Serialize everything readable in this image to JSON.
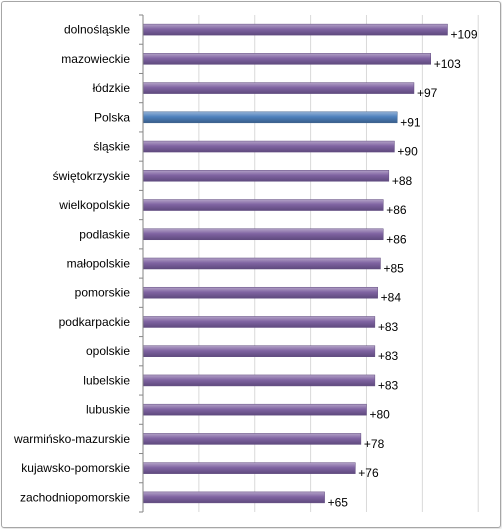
{
  "chart_data": {
    "type": "bar",
    "orientation": "horizontal",
    "categories": [
      "dolnośląskle",
      "mazowieckie",
      "łódzkie",
      "Polska",
      "śląskie",
      "świętokrzyskie",
      "wielkopolskie",
      "podlaskie",
      "małopolskie",
      "pomorskie",
      "podkarpackie",
      "opolskie",
      "lubelskie",
      "lubuskie",
      "warmińsko-mazurskie",
      "kujawsko-pomorskie",
      "zachodniopomorskie"
    ],
    "values": [
      109,
      103,
      97,
      91,
      90,
      88,
      86,
      86,
      85,
      84,
      83,
      83,
      83,
      80,
      78,
      76,
      65
    ],
    "value_labels": [
      "+109",
      "+103",
      "+97",
      "+91",
      "+90",
      "+88",
      "+86",
      "+86",
      "+85",
      "+84",
      "+83",
      "+83",
      "+83",
      "+80",
      "+78",
      "+76",
      "+65"
    ],
    "highlight_category": "Polska",
    "xlim": [
      0,
      123.5
    ],
    "grid": "vertical",
    "colors": {
      "bar": "#8064a2",
      "bar_light": "#b3a2c7",
      "bar_dark": "#5f4a7e",
      "highlight": "#4f81bd",
      "highlight_light": "#95b3d7",
      "highlight_dark": "#385d8a",
      "grid": "#d9d9d9",
      "axis": "#868686"
    }
  }
}
